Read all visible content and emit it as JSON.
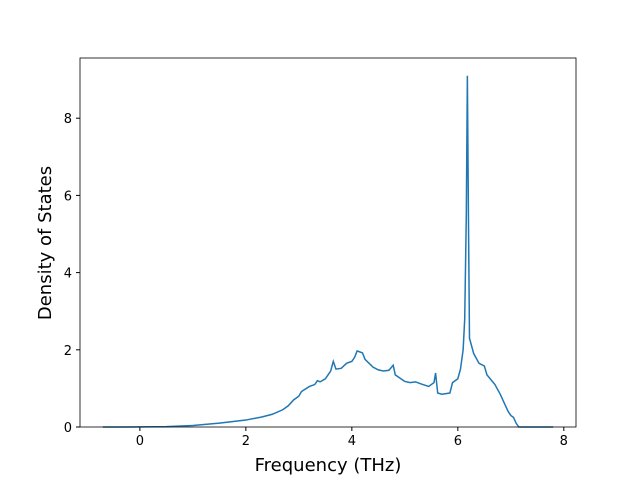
{
  "chart_data": {
    "type": "line",
    "x_label": "Frequency (THz)",
    "y_label": "Density of States",
    "x": [
      -0.7,
      -0.5,
      0,
      0.5,
      1,
      1.5,
      2,
      2.3,
      2.5,
      2.7,
      2.8,
      2.9,
      3.0,
      3.05,
      3.2,
      3.3,
      3.35,
      3.4,
      3.5,
      3.6,
      3.65,
      3.7,
      3.8,
      3.9,
      4.0,
      4.05,
      4.1,
      4.2,
      4.25,
      4.4,
      4.5,
      4.6,
      4.7,
      4.78,
      4.82,
      5.0,
      5.1,
      5.2,
      5.3,
      5.45,
      5.55,
      5.58,
      5.62,
      5.7,
      5.85,
      5.9,
      6.0,
      6.05,
      6.1,
      6.13,
      6.16,
      6.18,
      6.2,
      6.22,
      6.3,
      6.4,
      6.5,
      6.55,
      6.7,
      6.8,
      6.9,
      6.95,
      7.0,
      7.05,
      7.1,
      7.15,
      7.5,
      7.8
    ],
    "series": [
      {
        "color": "#1f77b4",
        "values": [
          0,
          0,
          0.002,
          0.01,
          0.04,
          0.1,
          0.18,
          0.26,
          0.33,
          0.45,
          0.55,
          0.7,
          0.8,
          0.92,
          1.05,
          1.1,
          1.2,
          1.17,
          1.25,
          1.45,
          1.7,
          1.5,
          1.52,
          1.65,
          1.7,
          1.8,
          1.97,
          1.92,
          1.75,
          1.55,
          1.48,
          1.45,
          1.47,
          1.6,
          1.35,
          1.18,
          1.15,
          1.17,
          1.12,
          1.05,
          1.15,
          1.4,
          0.88,
          0.85,
          0.88,
          1.15,
          1.25,
          1.5,
          2.0,
          2.8,
          5.5,
          9.1,
          5.5,
          2.3,
          1.9,
          1.65,
          1.58,
          1.35,
          1.1,
          0.85,
          0.55,
          0.4,
          0.3,
          0.25,
          0.1,
          0,
          0,
          0
        ]
      }
    ],
    "xlim": [
      -1.13,
      8.23
    ],
    "ylim": [
      0,
      9.56
    ],
    "xticks": [
      0,
      2,
      4,
      6,
      8
    ],
    "yticks": [
      0,
      2,
      4,
      6,
      8
    ]
  }
}
